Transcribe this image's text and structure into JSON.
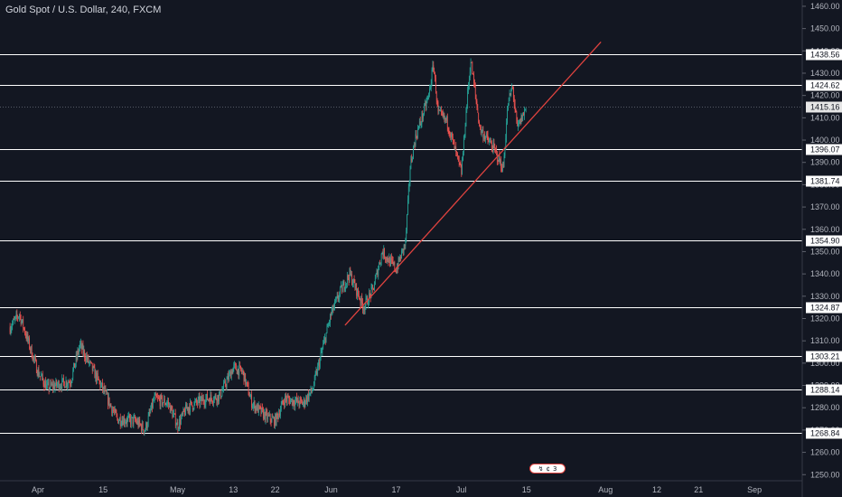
{
  "header": {
    "title": "Gold Spot / U.S. Dollar, 240, FXCM"
  },
  "event_badge": {
    "icons": [
      "↯",
      "¢",
      "3"
    ]
  },
  "colors": {
    "background": "#131722",
    "up_candle": "#26a69a",
    "down_candle": "#ef5350",
    "trendline": "#e0433f",
    "level_line": "#ffffff",
    "axis_text": "#b2b5be"
  },
  "chart_data": {
    "type": "candlestick",
    "title": "Gold Spot / U.S. Dollar, 240, FXCM",
    "ylim": [
      1248,
      1462
    ],
    "grid": false,
    "y_ticks": [
      1250,
      1260,
      1270,
      1280,
      1290,
      1300,
      1310,
      1320,
      1330,
      1340,
      1350,
      1360,
      1370,
      1380,
      1390,
      1400,
      1410,
      1420,
      1430,
      1440,
      1450,
      1460
    ],
    "y_tick_labels": [
      "1250.00",
      "1260.00",
      "1270.00",
      "1280.00",
      "1290.00",
      "1300.00",
      "1310.00",
      "1320.00",
      "1330.00",
      "1340.00",
      "1350.00",
      "1360.00",
      "1370.00",
      "1380.00",
      "1390.00",
      "1400.00",
      "1410.00",
      "1420.00",
      "1430.00",
      "1440.00",
      "1450.00",
      "1460.00"
    ],
    "x_ticks": [
      {
        "date": "2019-04-01",
        "label": "Apr"
      },
      {
        "date": "2019-04-15",
        "label": "15"
      },
      {
        "date": "2019-05-01",
        "label": "May"
      },
      {
        "date": "2019-05-13",
        "label": "13"
      },
      {
        "date": "2019-05-22",
        "label": "22"
      },
      {
        "date": "2019-06-03",
        "label": "Jun"
      },
      {
        "date": "2019-06-17",
        "label": "17"
      },
      {
        "date": "2019-07-01",
        "label": "Jul"
      },
      {
        "date": "2019-07-15",
        "label": "15"
      },
      {
        "date": "2019-08-01",
        "label": "Aug"
      },
      {
        "date": "2019-08-12",
        "label": "12"
      },
      {
        "date": "2019-08-21",
        "label": "21"
      },
      {
        "date": "2019-09-02",
        "label": "Sep"
      }
    ],
    "price_path": [
      {
        "date": "2019-03-26",
        "value": 1316
      },
      {
        "date": "2019-03-28",
        "value": 1322
      },
      {
        "date": "2019-04-01",
        "value": 1296
      },
      {
        "date": "2019-04-03",
        "value": 1289
      },
      {
        "date": "2019-04-08",
        "value": 1292
      },
      {
        "date": "2019-04-10",
        "value": 1308
      },
      {
        "date": "2019-04-12",
        "value": 1300
      },
      {
        "date": "2019-04-15",
        "value": 1288
      },
      {
        "date": "2019-04-18",
        "value": 1275
      },
      {
        "date": "2019-04-22",
        "value": 1274
      },
      {
        "date": "2019-04-24",
        "value": 1270
      },
      {
        "date": "2019-04-26",
        "value": 1284
      },
      {
        "date": "2019-04-29",
        "value": 1282
      },
      {
        "date": "2019-05-01",
        "value": 1272
      },
      {
        "date": "2019-05-03",
        "value": 1280
      },
      {
        "date": "2019-05-07",
        "value": 1284
      },
      {
        "date": "2019-05-10",
        "value": 1285
      },
      {
        "date": "2019-05-13",
        "value": 1298
      },
      {
        "date": "2019-05-15",
        "value": 1296
      },
      {
        "date": "2019-05-17",
        "value": 1282
      },
      {
        "date": "2019-05-20",
        "value": 1276
      },
      {
        "date": "2019-05-22",
        "value": 1274
      },
      {
        "date": "2019-05-24",
        "value": 1284
      },
      {
        "date": "2019-05-28",
        "value": 1282
      },
      {
        "date": "2019-05-30",
        "value": 1288
      },
      {
        "date": "2019-06-01",
        "value": 1305
      },
      {
        "date": "2019-06-03",
        "value": 1322
      },
      {
        "date": "2019-06-05",
        "value": 1332
      },
      {
        "date": "2019-06-07",
        "value": 1340
      },
      {
        "date": "2019-06-10",
        "value": 1325
      },
      {
        "date": "2019-06-12",
        "value": 1333
      },
      {
        "date": "2019-06-14",
        "value": 1350
      },
      {
        "date": "2019-06-17",
        "value": 1342
      },
      {
        "date": "2019-06-19",
        "value": 1354
      },
      {
        "date": "2019-06-20",
        "value": 1388
      },
      {
        "date": "2019-06-21",
        "value": 1400
      },
      {
        "date": "2019-06-24",
        "value": 1420
      },
      {
        "date": "2019-06-25",
        "value": 1434
      },
      {
        "date": "2019-06-26",
        "value": 1412
      },
      {
        "date": "2019-06-28",
        "value": 1408
      },
      {
        "date": "2019-07-01",
        "value": 1385
      },
      {
        "date": "2019-07-02",
        "value": 1412
      },
      {
        "date": "2019-07-03",
        "value": 1436
      },
      {
        "date": "2019-07-05",
        "value": 1405
      },
      {
        "date": "2019-07-08",
        "value": 1396
      },
      {
        "date": "2019-07-10",
        "value": 1387
      },
      {
        "date": "2019-07-11",
        "value": 1416
      },
      {
        "date": "2019-07-12",
        "value": 1424
      },
      {
        "date": "2019-07-13",
        "value": 1405
      },
      {
        "date": "2019-07-15",
        "value": 1415
      }
    ],
    "horizontal_levels": [
      {
        "value": 1438.56,
        "label": "1438.56"
      },
      {
        "value": 1424.62,
        "label": "1424.62"
      },
      {
        "value": 1396.07,
        "label": "1396.07"
      },
      {
        "value": 1381.74,
        "label": "1381.74"
      },
      {
        "value": 1354.9,
        "label": "1354.90"
      },
      {
        "value": 1324.87,
        "label": "1324.87"
      },
      {
        "value": 1303.21,
        "label": "1303.21"
      },
      {
        "value": 1288.14,
        "label": "1288.14"
      },
      {
        "value": 1268.84,
        "label": "1268.84"
      }
    ],
    "current_price": {
      "value": 1415.16,
      "label": "1415.16"
    },
    "trendline": [
      {
        "date": "2019-06-06",
        "value": 1317
      },
      {
        "date": "2019-07-31",
        "value": 1444
      }
    ]
  }
}
